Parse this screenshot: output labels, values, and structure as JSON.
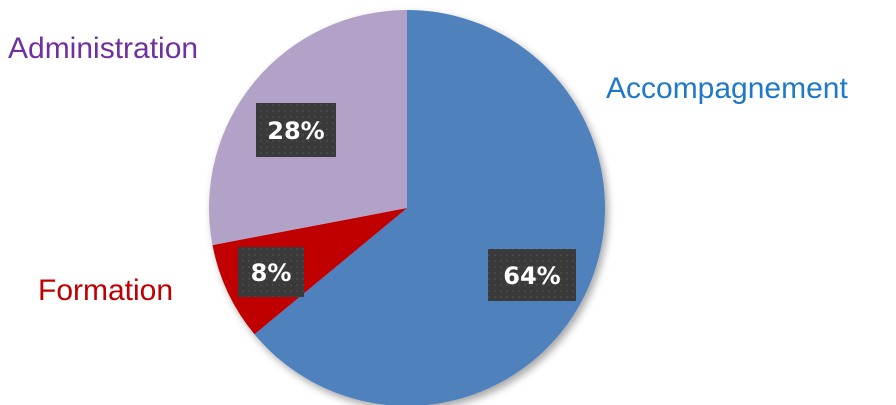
{
  "chart_data": {
    "type": "pie",
    "title": "",
    "start": "top",
    "direction": "clockwise",
    "slices": [
      {
        "label": "Accompagnement",
        "value": 64,
        "display": "64%",
        "color": "#4F81BD",
        "label_color": "#1F78C8"
      },
      {
        "label": "Formation",
        "value": 8,
        "display": "8%",
        "color": "#C00000",
        "label_color": "#C00000"
      },
      {
        "label": "Administration",
        "value": 28,
        "display": "28%",
        "color": "#B3A2C7",
        "label_color": "#7030A0"
      }
    ],
    "data_label_style": {
      "background": "#3A3A3A",
      "text_color": "#FFFFFF"
    }
  }
}
